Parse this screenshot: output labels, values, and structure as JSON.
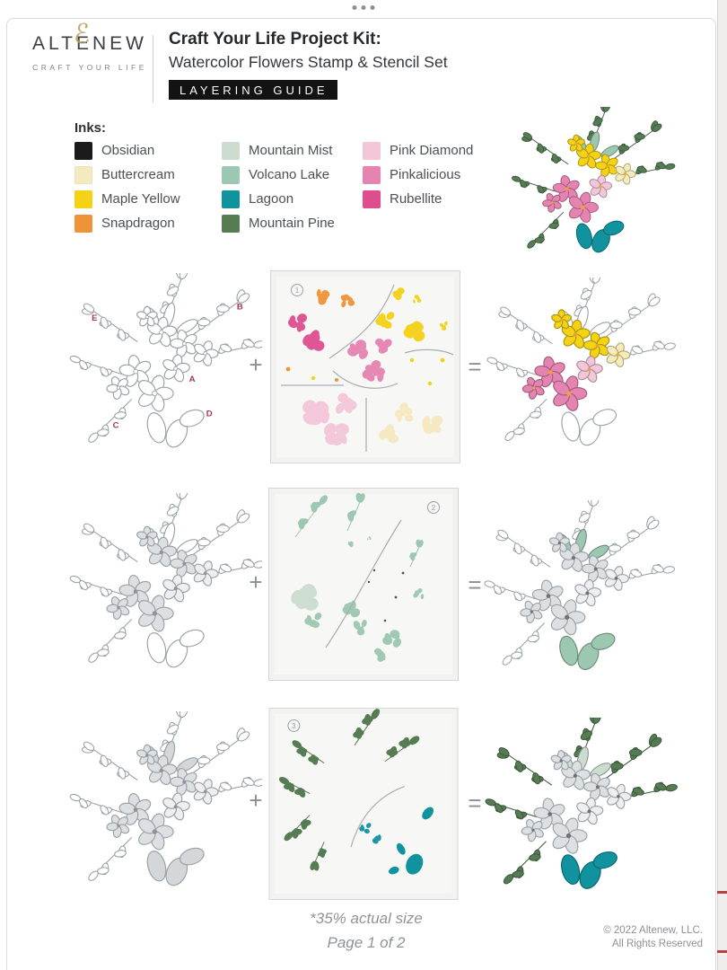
{
  "window": {
    "handle": "drag-dots"
  },
  "header": {
    "brand": {
      "name": "ALTENEW",
      "amp": "ℰ",
      "tagline": "CRAFT YOUR LIFE"
    },
    "title": "Craft Your Life Project Kit:",
    "subtitle": "Watercolor Flowers Stamp & Stencil Set",
    "badge": "LAYERING GUIDE"
  },
  "inks": {
    "heading": "Inks:",
    "columns": [
      [
        {
          "name": "Obsidian",
          "hex": "#1b1b1b"
        },
        {
          "name": "Buttercream",
          "hex": "#f5e9c0"
        },
        {
          "name": "Maple Yellow",
          "hex": "#f4d215"
        },
        {
          "name": "Snapdragon",
          "hex": "#ef9339"
        }
      ],
      [
        {
          "name": "Mountain Mist",
          "hex": "#ccdcd0"
        },
        {
          "name": "Volcano Lake",
          "hex": "#9cc7b0"
        },
        {
          "name": "Lagoon",
          "hex": "#11929f"
        },
        {
          "name": "Mountain Pine",
          "hex": "#567c54"
        }
      ],
      [
        {
          "name": "Pink Diamond",
          "hex": "#f3c6da"
        },
        {
          "name": "Pinkalicious",
          "hex": "#e583b1"
        },
        {
          "name": "Rubellite",
          "hex": "#dd4e8f"
        }
      ]
    ]
  },
  "steps": [
    {
      "number": "1",
      "plus": "+",
      "equals": "=",
      "labels": [
        "A",
        "B",
        "C",
        "D",
        "E"
      ]
    },
    {
      "number": "2",
      "plus": "+",
      "equals": "="
    },
    {
      "number": "3",
      "plus": "+",
      "equals": "="
    }
  ],
  "footer": {
    "scale_note": "*35% actual size",
    "page": "Page 1 of 2",
    "copyright_line1": "© 2022 Altenew, LLC.",
    "copyright_line2": "All Rights Reserved"
  },
  "colors": {
    "outline": "#9aa1a7",
    "label": "#a03a52",
    "gray_flower": "#dde0e3",
    "gray_flower_pale": "#edeff1",
    "gray_leaf": "#d3d7da",
    "pale_yellow": "#f6ecb8",
    "panel_bg": "#f2f2f0",
    "panel_inner": "#f7f7f5",
    "panel_border": "#d5d5d3",
    "divider_line": "#a9adb2",
    "fleck": "#4c5258",
    "center_dot": "#efa23c"
  }
}
